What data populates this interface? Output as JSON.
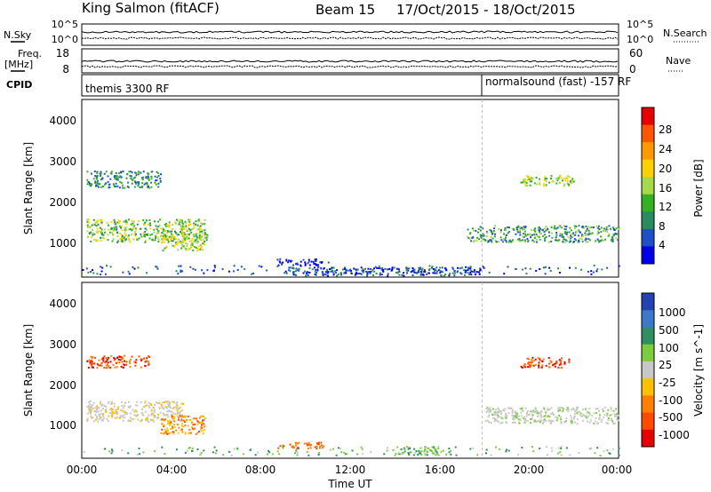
{
  "header": {
    "radar": "King Salmon (fitACF)",
    "beam": "Beam 15",
    "date_range": "17/Oct/2015 - 18/Oct/2015"
  },
  "panels": {
    "nsky_label": "N.Sky",
    "nsky_ticks": [
      "10^5",
      "10^0"
    ],
    "nsearch_label": "N.Search",
    "nsearch_ticks": [
      "10^5",
      "10^0"
    ],
    "freq_label": "Freq.",
    "freq_unit": "[MHz]",
    "freq_ticks": [
      "18",
      "8"
    ],
    "nave_label": "Nave",
    "nave_ticks": [
      "60",
      "0"
    ],
    "cpid_label": "CPID",
    "cpid_1": "themis 3300 RF",
    "cpid_2": "normalsound (fast) -157 RF"
  },
  "chart_data": [
    {
      "type": "heatmap",
      "quantity": "Power",
      "xlabel": "",
      "ylabel": "Slant Range [km]",
      "ylim": [
        250,
        4500
      ],
      "y_ticks": [
        "4000",
        "3000",
        "2000",
        "1000"
      ],
      "colorbar_label": "Power [dB]",
      "colorbar_ticks": [
        "28",
        "24",
        "20",
        "16",
        "12",
        "8",
        "4"
      ],
      "colorbar_colors": [
        "#e60000",
        "#ff5500",
        "#ff9900",
        "#ffd000",
        "#a6d94a",
        "#35b025",
        "#2a8a60",
        "#1f4fc8",
        "#0000e6"
      ],
      "regions": [
        {
          "x": [
            0.2,
            5.6
          ],
          "y": [
            1100,
            1650
          ],
          "level": "power 12-24 dB"
        },
        {
          "x": [
            0.2,
            3.5
          ],
          "y": [
            2400,
            2800
          ],
          "level": "power 8-16 dB"
        },
        {
          "x": [
            3.5,
            5.5
          ],
          "y": [
            900,
            1300
          ],
          "level": "power 12-20 dB"
        },
        {
          "x": [
            8.7,
            11.0
          ],
          "y": [
            550,
            700
          ],
          "level": "power 4-8 dB"
        },
        {
          "x": [
            17.2,
            24.0
          ],
          "y": [
            1100,
            1500
          ],
          "level": "power 8-20 dB"
        },
        {
          "x": [
            19.6,
            22.0
          ],
          "y": [
            2450,
            2700
          ],
          "level": "power 12-20 dB"
        },
        {
          "x": [
            9.0,
            17.8
          ],
          "y": [
            300,
            500
          ],
          "level": "power 4-12 dB"
        }
      ]
    },
    {
      "type": "heatmap",
      "quantity": "Velocity",
      "xlabel": "Time UT",
      "ylabel": "Slant Range [km]",
      "ylim": [
        250,
        4500
      ],
      "y_ticks": [
        "4000",
        "3000",
        "2000",
        "1000"
      ],
      "x_ticks": [
        "00:00",
        "04:00",
        "08:00",
        "12:00",
        "16:00",
        "20:00",
        "00:00"
      ],
      "colorbar_label": "Velocity [m s^-1]",
      "colorbar_ticks": [
        "1000",
        "500",
        "100",
        "25",
        "-25",
        "-100",
        "-500",
        "-1000"
      ],
      "colorbar_colors": [
        "#2142b0",
        "#3a78c8",
        "#2f8f60",
        "#7ccd3c",
        "#c8c8c8",
        "#ffc000",
        "#ff8000",
        "#ff4a00",
        "#e60000"
      ],
      "regions": [
        {
          "x": [
            0.2,
            4.5
          ],
          "y": [
            1150,
            1650
          ],
          "level": "ground scatter (grey)"
        },
        {
          "x": [
            0.2,
            3.0
          ],
          "y": [
            2450,
            2750
          ],
          "level": "velocity -500 to -1000 m/s"
        },
        {
          "x": [
            3.5,
            5.5
          ],
          "y": [
            850,
            1300
          ],
          "level": "velocity -500 m/s"
        },
        {
          "x": [
            8.7,
            10.8
          ],
          "y": [
            500,
            650
          ],
          "level": "velocity -500 m/s"
        },
        {
          "x": [
            18.0,
            24.0
          ],
          "y": [
            1100,
            1500
          ],
          "level": "ground scatter (grey)"
        },
        {
          "x": [
            19.6,
            21.8
          ],
          "y": [
            2450,
            2700
          ],
          "level": "velocity -500 to -1000 m/s"
        },
        {
          "x": [
            14.0,
            16.5
          ],
          "y": [
            350,
            550
          ],
          "level": "velocity 100 m/s"
        }
      ]
    }
  ]
}
